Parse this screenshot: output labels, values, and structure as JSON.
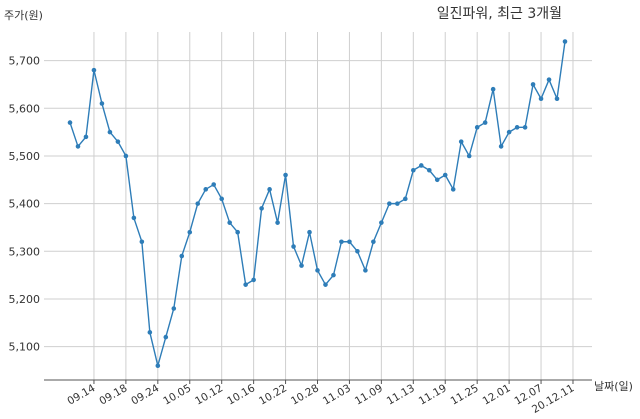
{
  "chart_data": {
    "type": "line",
    "title": "일진파워, 최근 3개월",
    "ylabel": "주가(원)",
    "xlabel": "날짜(일)",
    "ylim": [
      5030,
      5760
    ],
    "yticks": [
      5100,
      5200,
      5300,
      5400,
      5500,
      5600,
      5700
    ],
    "ytick_labels": [
      "5,100",
      "5,200",
      "5,300",
      "5,400",
      "5,500",
      "5,600",
      "5,700"
    ],
    "xtick_labels": [
      "09.14",
      "09.18",
      "09.24",
      "10.05",
      "10.12",
      "10.16",
      "10.22",
      "10.28",
      "11.03",
      "11.09",
      "11.13",
      "11.19",
      "11.25",
      "12.01",
      "12.07",
      "20.12.11"
    ],
    "xtick_index": [
      3,
      7,
      11,
      15,
      19,
      23,
      27,
      31,
      35,
      39,
      43,
      47,
      51,
      55,
      59,
      63
    ],
    "grid": true,
    "line_color": "#2e7db8",
    "series": [
      {
        "values": [
          5570,
          5520,
          5540,
          5680,
          5610,
          5550,
          5530,
          5500,
          5370,
          5320,
          5130,
          5060,
          5120,
          5180,
          5290,
          5340,
          5400,
          5430,
          5440,
          5410,
          5360,
          5340,
          5230,
          5240,
          5390,
          5430,
          5360,
          5460,
          5310,
          5270,
          5340,
          5260,
          5230,
          5250,
          5320,
          5320,
          5300,
          5260,
          5320,
          5360,
          5400,
          5400,
          5410,
          5470,
          5480,
          5470,
          5450,
          5460,
          5430,
          5530,
          5500,
          5560,
          5570,
          5640,
          5520,
          5550,
          5560,
          5560,
          5650,
          5620,
          5660,
          5620,
          5740
        ]
      }
    ]
  }
}
